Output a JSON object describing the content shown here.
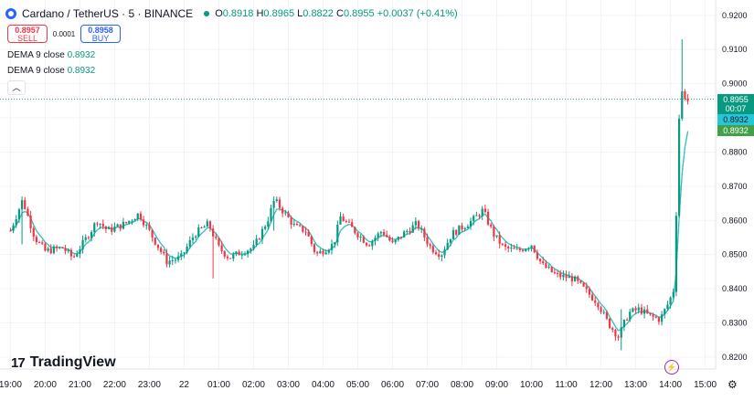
{
  "header": {
    "symbol": "Cardano / TetherUS · 5 · BINANCE",
    "open_label": "O",
    "open": "0.8918",
    "high_label": "H",
    "high": "0.8965",
    "low_label": "L",
    "low": "0.8822",
    "close_label": "C",
    "close": "0.8955",
    "change": "+0.0037 (+0.41%)"
  },
  "trade": {
    "sell_price": "0.8957",
    "sell_label": "SELL",
    "spread": "0.0001",
    "buy_price": "0.8958",
    "buy_label": "BUY"
  },
  "indicators": [
    {
      "label": "DEMA 9 close",
      "value": "0.8932"
    },
    {
      "label": "DEMA 9 close",
      "value": "0.8932"
    }
  ],
  "price_labels": {
    "last": "0.8955",
    "countdown": "00:07",
    "dema1": "0.8932",
    "dema2": "0.8932"
  },
  "logo_text": "TradingView",
  "colors": {
    "up": "#089981",
    "down": "#f23645",
    "dema1": "#26c6da",
    "dema2": "#43a047",
    "grid": "#f0f3fa",
    "text": "#131722",
    "last_line": "#26a69a"
  },
  "chart_data": {
    "type": "candlestick",
    "symbol": "Cardano / TetherUS",
    "interval": "5",
    "exchange": "BINANCE",
    "y_ticks": [
      0.82,
      0.83,
      0.84,
      0.85,
      0.86,
      0.87,
      0.88,
      0.89,
      0.9,
      0.91,
      0.92
    ],
    "y_tick_labels": [
      "0.8200",
      "0.8300",
      "0.8400",
      "0.8500",
      "0.8600",
      "0.8700",
      "0.8800",
      "0.8900",
      "0.9000",
      "0.9100",
      "0.9200"
    ],
    "ylim": [
      0.8165,
      0.9245
    ],
    "x_tick_labels": [
      "19:00",
      "20:00",
      "21:00",
      "22:00",
      "23:00",
      "22",
      "01:00",
      "02:00",
      "03:00",
      "04:00",
      "05:00",
      "06:00",
      "07:00",
      "08:00",
      "09:00",
      "10:00",
      "11:00",
      "12:00",
      "13:00",
      "14:00",
      "15:00"
    ],
    "x_tick_hours": [
      0,
      1,
      2,
      3,
      4,
      5,
      6,
      7,
      8,
      9,
      10,
      11,
      12,
      13,
      14,
      15,
      16,
      17,
      18,
      19,
      20
    ],
    "xlim_hours": [
      -0.3,
      20.3
    ],
    "anchors": [
      [
        0.0,
        0.857
      ],
      [
        0.35,
        0.866
      ],
      [
        0.7,
        0.855
      ],
      [
        1.0,
        0.851
      ],
      [
        1.5,
        0.852
      ],
      [
        1.8,
        0.849
      ],
      [
        2.2,
        0.855
      ],
      [
        2.5,
        0.86
      ],
      [
        2.8,
        0.857
      ],
      [
        3.3,
        0.859
      ],
      [
        3.7,
        0.862
      ],
      [
        4.1,
        0.855
      ],
      [
        4.5,
        0.848
      ],
      [
        4.9,
        0.849
      ],
      [
        5.3,
        0.856
      ],
      [
        5.7,
        0.859
      ],
      [
        6.0,
        0.852
      ],
      [
        6.3,
        0.849
      ],
      [
        6.7,
        0.851
      ],
      [
        7.0,
        0.852
      ],
      [
        7.4,
        0.86
      ],
      [
        7.6,
        0.866
      ],
      [
        7.9,
        0.862
      ],
      [
        8.2,
        0.858
      ],
      [
        8.5,
        0.857
      ],
      [
        8.8,
        0.85
      ],
      [
        9.3,
        0.853
      ],
      [
        9.5,
        0.861
      ],
      [
        9.9,
        0.857
      ],
      [
        10.3,
        0.853
      ],
      [
        10.7,
        0.857
      ],
      [
        11.0,
        0.853
      ],
      [
        11.3,
        0.856
      ],
      [
        11.7,
        0.859
      ],
      [
        12.1,
        0.852
      ],
      [
        12.4,
        0.85
      ],
      [
        12.7,
        0.856
      ],
      [
        13.0,
        0.858
      ],
      [
        13.3,
        0.86
      ],
      [
        13.6,
        0.863
      ],
      [
        13.9,
        0.856
      ],
      [
        14.2,
        0.852
      ],
      [
        14.6,
        0.851
      ],
      [
        15.0,
        0.853
      ],
      [
        15.3,
        0.847
      ],
      [
        15.7,
        0.844
      ],
      [
        16.2,
        0.843
      ],
      [
        16.5,
        0.84
      ],
      [
        16.9,
        0.836
      ],
      [
        17.2,
        0.83
      ],
      [
        17.5,
        0.826
      ],
      [
        17.8,
        0.833
      ],
      [
        18.1,
        0.834
      ],
      [
        18.4,
        0.832
      ],
      [
        18.7,
        0.831
      ],
      [
        18.95,
        0.836
      ],
      [
        19.1,
        0.84
      ],
      [
        19.25,
        0.89
      ],
      [
        19.35,
        0.899
      ],
      [
        19.45,
        0.895
      ]
    ],
    "spikes": [
      {
        "hour": 0.35,
        "high": 0.867,
        "low": 0.853
      },
      {
        "hour": 5.8,
        "high": 0.853,
        "low": 0.843
      },
      {
        "hour": 7.55,
        "high": 0.867,
        "low": 0.857
      },
      {
        "hour": 17.55,
        "high": 0.834,
        "low": 0.822
      },
      {
        "hour": 19.37,
        "high": 0.913,
        "low": 0.89
      }
    ],
    "last_price": 0.8955,
    "last_price_hour": 19.5,
    "dema_values": [
      0.8932,
      0.8932
    ],
    "latest_candle": {
      "open": 0.8918,
      "high": 0.8965,
      "low": 0.8822,
      "close": 0.8955
    }
  }
}
